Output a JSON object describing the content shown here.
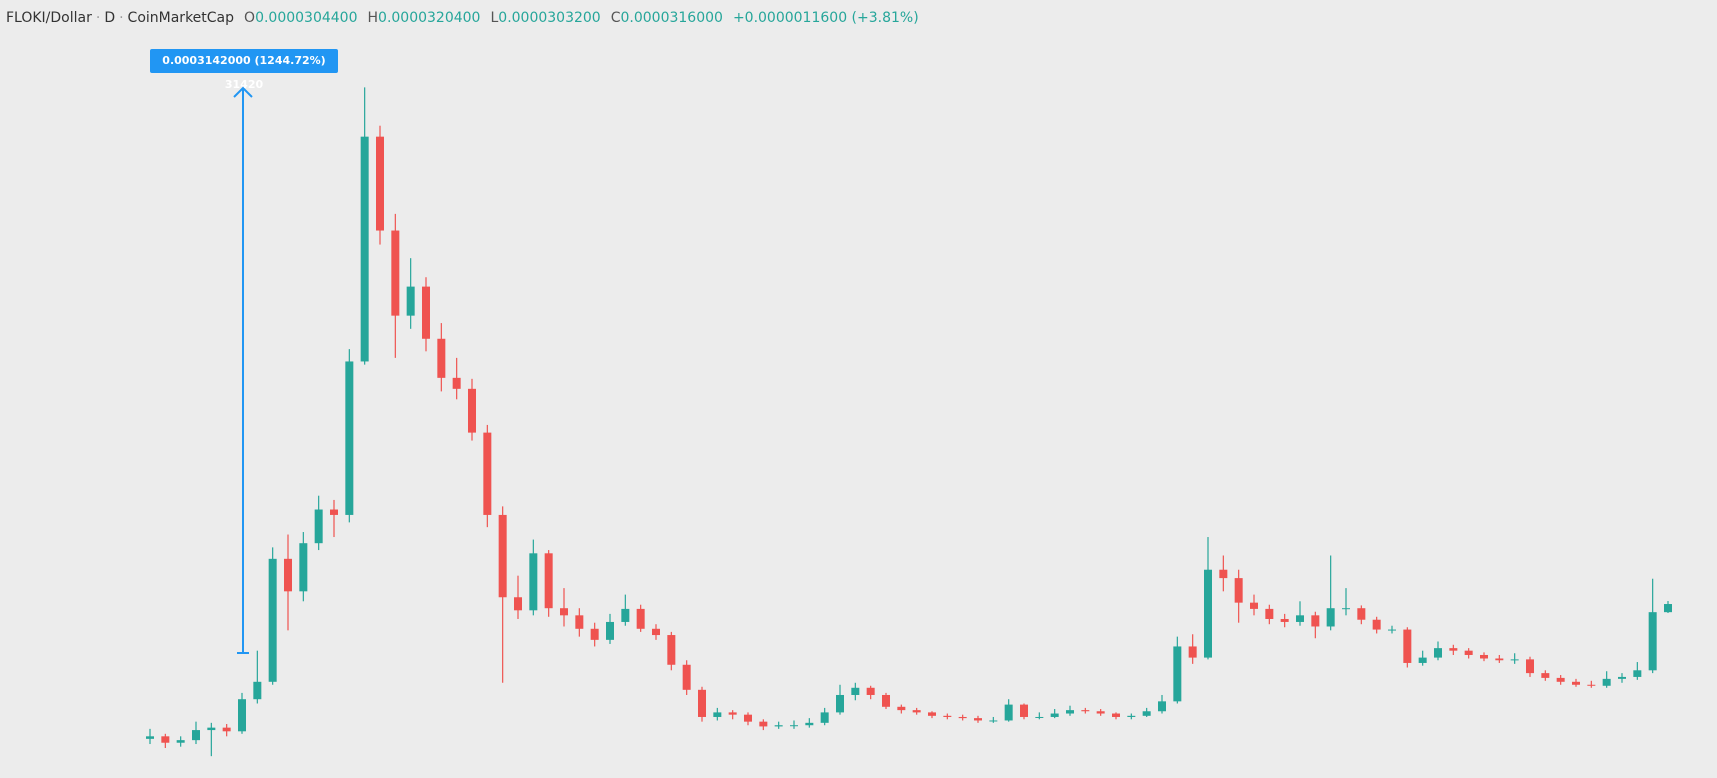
{
  "chart_data": {
    "type": "candlestick",
    "symbol": "FLOKI/Dollar",
    "interval": "D",
    "source": "CoinMarketCap",
    "ohlc_legend": [
      {
        "label": "O",
        "value": "0.0000304400"
      },
      {
        "label": "H",
        "value": "0.0000320400"
      },
      {
        "label": "L",
        "value": "0.0000303200"
      },
      {
        "label": "C",
        "value": "0.0000316000"
      }
    ],
    "change": "+0.0000011600 (+3.81%)",
    "measure_label": "0.0003142000 (1244.72%) 31420",
    "log_scale": true,
    "ylim": [
      1.42e-05,
      0.000508
    ],
    "up_color": "#26a69a",
    "down_color": "#ef5350",
    "open": [
      1.7e-05,
      1.72e-05,
      1.67e-05,
      1.69e-05,
      1.77e-05,
      1.79e-05,
      1.76e-05,
      2.04e-05,
      2.21e-05,
      3.89e-05,
      3.35e-05,
      4.18e-05,
      4.88e-05,
      4.76e-05,
      9.64e-05,
      0.000271,
      0.000176,
      0.000119,
      0.000136,
      0.000107,
      8.94e-05,
      8.5e-05,
      6.95e-05,
      4.76e-05,
      3.26e-05,
      3.07e-05,
      3.99e-05,
      3.1e-05,
      3e-05,
      2.82e-05,
      2.68e-05,
      2.91e-05,
      3.09e-05,
      2.82e-05,
      2.74e-05,
      2.39e-05,
      2.13e-05,
      1.88e-05,
      1.92e-05,
      1.9e-05,
      1.84e-05,
      1.8e-05,
      1.81e-05,
      1.81e-05,
      1.83e-05,
      1.92e-05,
      2.08e-05,
      2.15e-05,
      2.08e-05,
      1.97e-05,
      1.94e-05,
      1.92e-05,
      1.89e-05,
      1.88e-05,
      1.87e-05,
      1.85e-05,
      1.85e-05,
      1.99e-05,
      1.88e-05,
      1.88e-05,
      1.91e-05,
      1.94e-05,
      1.93e-05,
      1.91e-05,
      1.88e-05,
      1.89e-05,
      1.93e-05,
      2.02e-05,
      2.6e-05,
      2.47e-05,
      3.7e-05,
      3.56e-05,
      3.18e-05,
      3.09e-05,
      2.95e-05,
      2.91e-05,
      3e-05,
      2.85e-05,
      3.1e-05,
      3.1e-05,
      2.94e-05,
      2.81e-05,
      2.81e-05,
      2.41e-05,
      2.47e-05,
      2.58e-05,
      2.55e-05,
      2.5e-05,
      2.46e-05,
      2.44e-05,
      2.45e-05,
      2.3e-05,
      2.25e-05,
      2.21e-05,
      2.18e-05,
      2.17e-05,
      2.24e-05,
      2.26e-05,
      2.33e-05,
      3.044e-05
    ],
    "high": [
      1.78e-05,
      1.74e-05,
      1.72e-05,
      1.84e-05,
      1.83e-05,
      1.82e-05,
      2.1e-05,
      2.55e-05,
      4.1e-05,
      4.35e-05,
      4.4e-05,
      5.2e-05,
      5.1e-05,
      0.000102,
      0.00034,
      0.000285,
      0.00019,
      0.000155,
      0.000142,
      0.000115,
      9.8e-05,
      8.9e-05,
      7.2e-05,
      4.95e-05,
      3.6e-05,
      4.25e-05,
      4.05e-05,
      3.4e-05,
      3.1e-05,
      2.9e-05,
      3.02e-05,
      3.3e-05,
      3.15e-05,
      2.88e-05,
      2.78e-05,
      2.44e-05,
      2.16e-05,
      1.96e-05,
      1.94e-05,
      1.92e-05,
      1.86e-05,
      1.84e-05,
      1.85e-05,
      1.87e-05,
      1.96e-05,
      2.18e-05,
      2.2e-05,
      2.17e-05,
      2.1e-05,
      1.99e-05,
      1.96e-05,
      1.93e-05,
      1.91e-05,
      1.9e-05,
      1.89e-05,
      1.88e-05,
      2.04e-05,
      2e-05,
      1.92e-05,
      1.95e-05,
      1.98e-05,
      1.96e-05,
      1.95e-05,
      1.92e-05,
      1.91e-05,
      1.96e-05,
      2.08e-05,
      2.72e-05,
      2.75e-05,
      4.3e-05,
      3.95e-05,
      3.7e-05,
      3.3e-05,
      3.15e-05,
      3.02e-05,
      3.2e-05,
      3.05e-05,
      3.95e-05,
      3.4e-05,
      3.14e-05,
      2.98e-05,
      2.86e-05,
      2.84e-05,
      2.55e-05,
      2.66e-05,
      2.62e-05,
      2.58e-05,
      2.53e-05,
      2.5e-05,
      2.52e-05,
      2.48e-05,
      2.33e-05,
      2.28e-05,
      2.24e-05,
      2.22e-05,
      2.32e-05,
      2.3e-05,
      2.42e-05,
      3.55e-05,
      3.204e-05
    ],
    "low": [
      1.66e-05,
      1.63e-05,
      1.64e-05,
      1.66e-05,
      1.57e-05,
      1.72e-05,
      1.74e-05,
      2e-05,
      2.18e-05,
      2.8e-05,
      3.2e-05,
      4.05e-05,
      4.3e-05,
      4.6e-05,
      9.5e-05,
      0.000165,
      9.8e-05,
      0.000112,
      0.000101,
      8.4e-05,
      8.1e-05,
      6.7e-05,
      4.5e-05,
      2.2e-05,
      2.95e-05,
      3e-05,
      2.98e-05,
      2.85e-05,
      2.72e-05,
      2.6e-05,
      2.63e-05,
      2.86e-05,
      2.78e-05,
      2.68e-05,
      2.33e-05,
      2.08e-05,
      1.84e-05,
      1.85e-05,
      1.86e-05,
      1.81e-05,
      1.77e-05,
      1.78e-05,
      1.78e-05,
      1.79e-05,
      1.81e-05,
      1.9e-05,
      2.03e-05,
      2.04e-05,
      1.95e-05,
      1.91e-05,
      1.9e-05,
      1.87e-05,
      1.86e-05,
      1.85e-05,
      1.83e-05,
      1.83e-05,
      1.84e-05,
      1.86e-05,
      1.86e-05,
      1.87e-05,
      1.89e-05,
      1.91e-05,
      1.89e-05,
      1.86e-05,
      1.86e-05,
      1.88e-05,
      1.91e-05,
      2e-05,
      2.4e-05,
      2.45e-05,
      3.35e-05,
      2.9e-05,
      3e-05,
      2.88e-05,
      2.84e-05,
      2.86e-05,
      2.7e-05,
      2.8e-05,
      3e-05,
      2.88e-05,
      2.76e-05,
      2.76e-05,
      2.36e-05,
      2.38e-05,
      2.44e-05,
      2.5e-05,
      2.46e-05,
      2.43e-05,
      2.41e-05,
      2.4e-05,
      2.26e-05,
      2.22e-05,
      2.18e-05,
      2.16e-05,
      2.15e-05,
      2.15e-05,
      2.2e-05,
      2.23e-05,
      2.3e-05,
      3.032e-05
    ],
    "close": [
      1.72e-05,
      1.67e-05,
      1.69e-05,
      1.77e-05,
      1.79e-05,
      1.76e-05,
      2.04e-05,
      2.21e-05,
      3.89e-05,
      3.35e-05,
      4.18e-05,
      4.88e-05,
      4.76e-05,
      9.64e-05,
      0.000271,
      0.000176,
      0.000119,
      0.000136,
      0.000107,
      8.94e-05,
      8.5e-05,
      6.95e-05,
      4.76e-05,
      3.26e-05,
      3.07e-05,
      3.99e-05,
      3.1e-05,
      3e-05,
      2.82e-05,
      2.68e-05,
      2.91e-05,
      3.09e-05,
      2.82e-05,
      2.74e-05,
      2.39e-05,
      2.13e-05,
      1.88e-05,
      1.92e-05,
      1.9e-05,
      1.84e-05,
      1.8e-05,
      1.81e-05,
      1.81e-05,
      1.83e-05,
      1.92e-05,
      2.08e-05,
      2.15e-05,
      2.08e-05,
      1.97e-05,
      1.94e-05,
      1.92e-05,
      1.89e-05,
      1.88e-05,
      1.87e-05,
      1.85e-05,
      1.85e-05,
      1.99e-05,
      1.88e-05,
      1.88e-05,
      1.91e-05,
      1.94e-05,
      1.93e-05,
      1.91e-05,
      1.88e-05,
      1.89e-05,
      1.93e-05,
      2.02e-05,
      2.6e-05,
      2.47e-05,
      3.7e-05,
      3.56e-05,
      3.18e-05,
      3.09e-05,
      2.95e-05,
      2.91e-05,
      3e-05,
      2.85e-05,
      3.1e-05,
      3.1e-05,
      2.94e-05,
      2.81e-05,
      2.81e-05,
      2.41e-05,
      2.47e-05,
      2.58e-05,
      2.55e-05,
      2.5e-05,
      2.46e-05,
      2.44e-05,
      2.45e-05,
      2.3e-05,
      2.25e-05,
      2.21e-05,
      2.18e-05,
      2.17e-05,
      2.24e-05,
      2.26e-05,
      2.33e-05,
      3.044e-05,
      3.16e-05
    ]
  }
}
